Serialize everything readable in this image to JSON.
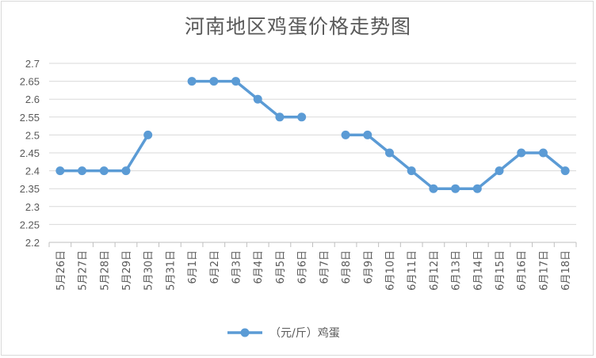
{
  "chart_data": {
    "type": "line",
    "title": "河南地区鸡蛋价格走势图",
    "xlabel": "",
    "ylabel": "",
    "ylim": [
      2.2,
      2.7
    ],
    "yticks": [
      2.2,
      2.25,
      2.3,
      2.35,
      2.4,
      2.45,
      2.5,
      2.55,
      2.6,
      2.65,
      2.7
    ],
    "ytick_labels": [
      "2.2",
      "2.25",
      "2.3",
      "2.35",
      "2.4",
      "2.45",
      "2.5",
      "2.55",
      "2.6",
      "2.65",
      "2.7"
    ],
    "grid": true,
    "legend_position": "bottom",
    "categories": [
      "5月26日",
      "5月27日",
      "5月28日",
      "5月29日",
      "5月30日",
      "5月31日",
      "6月1日",
      "6月2日",
      "6月3日",
      "6月4日",
      "6月5日",
      "6月6日",
      "6月7日",
      "6月8日",
      "6月9日",
      "6月10日",
      "6月11日",
      "6月12日",
      "6月13日",
      "6月14日",
      "6月15日",
      "6月16日",
      "6月17日",
      "6月18日"
    ],
    "series": [
      {
        "name": "（元/斤）鸡蛋",
        "color": "#5b9bd5",
        "values": [
          2.4,
          2.4,
          2.4,
          2.4,
          2.5,
          null,
          2.65,
          2.65,
          2.65,
          2.6,
          2.55,
          2.55,
          null,
          2.5,
          2.5,
          2.45,
          2.4,
          2.35,
          2.35,
          2.35,
          2.4,
          2.45,
          2.45,
          2.4
        ]
      }
    ]
  }
}
